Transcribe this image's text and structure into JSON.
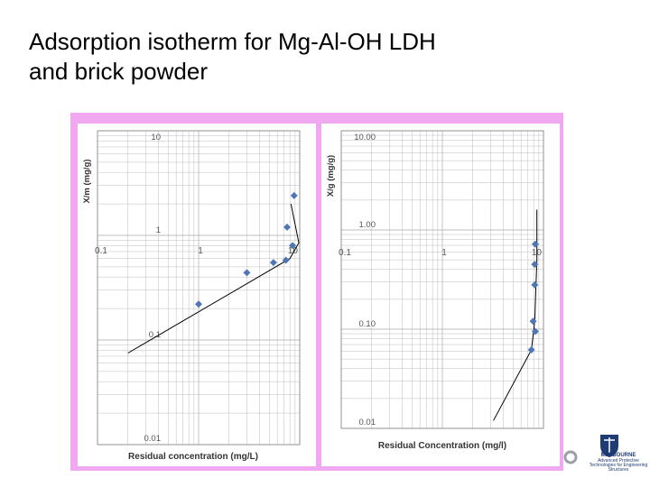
{
  "slide": {
    "title_line1": "Adsorption isotherm for Mg-Al-OH LDH",
    "title_line2": "and brick powder"
  },
  "logo": {
    "university": "MELBOURNE",
    "line2": "Advanced Protective",
    "line3": "Technologies for Engineering",
    "line4": "Structures"
  },
  "colors": {
    "frame": "#f0a8f0",
    "marker": "#4f77b5",
    "grid": "#bdbdbd",
    "line": "#000000"
  },
  "chart_data": [
    {
      "type": "scatter",
      "scale": "log-log",
      "xlabel": "Residual concentration (mg/L)",
      "ylabel": "X/m (mg/g)",
      "x_ticks": [
        "0.1",
        "1",
        "10"
      ],
      "y_ticks": [
        "10",
        "1",
        "0.1",
        "0.01"
      ],
      "xlim": [
        0.1,
        10
      ],
      "ylim": [
        0.01,
        10
      ],
      "grid": true,
      "series": [
        {
          "points": [
            {
              "x": 1.0,
              "y": 0.22
            },
            {
              "x": 3.0,
              "y": 0.44
            },
            {
              "x": 5.5,
              "y": 0.55
            },
            {
              "x": 7.3,
              "y": 0.58
            },
            {
              "x": 8.5,
              "y": 0.8
            },
            {
              "x": 7.5,
              "y": 1.2
            },
            {
              "x": 8.8,
              "y": 2.4
            }
          ]
        }
      ],
      "fit_line": [
        {
          "x": 0.2,
          "y": 0.075
        },
        {
          "x": 8.0,
          "y": 0.6
        },
        {
          "x": 9.8,
          "y": 0.85
        },
        {
          "x": 8.2,
          "y": 2.0
        }
      ]
    },
    {
      "type": "scatter",
      "scale": "log-log",
      "xlabel": "Residual Concentration (mg/l)",
      "ylabel": "X/g (mg/g)",
      "x_ticks": [
        "0.1",
        "1",
        "10"
      ],
      "y_ticks": [
        "10.00",
        "1.00",
        "0.10",
        "0.01"
      ],
      "xlim": [
        0.1,
        10
      ],
      "ylim": [
        0.01,
        10
      ],
      "grid": true,
      "series": [
        {
          "points": [
            {
              "x": 7.6,
              "y": 0.062
            },
            {
              "x": 8.3,
              "y": 0.095
            },
            {
              "x": 7.9,
              "y": 0.12
            },
            {
              "x": 8.2,
              "y": 0.28
            },
            {
              "x": 8.2,
              "y": 0.45
            },
            {
              "x": 8.3,
              "y": 0.72
            }
          ]
        }
      ],
      "fit_line": [
        {
          "x": 3.2,
          "y": 0.012
        },
        {
          "x": 7.6,
          "y": 0.062
        },
        {
          "x": 8.2,
          "y": 0.12
        },
        {
          "x": 8.6,
          "y": 0.5
        },
        {
          "x": 8.6,
          "y": 1.6
        }
      ]
    }
  ]
}
